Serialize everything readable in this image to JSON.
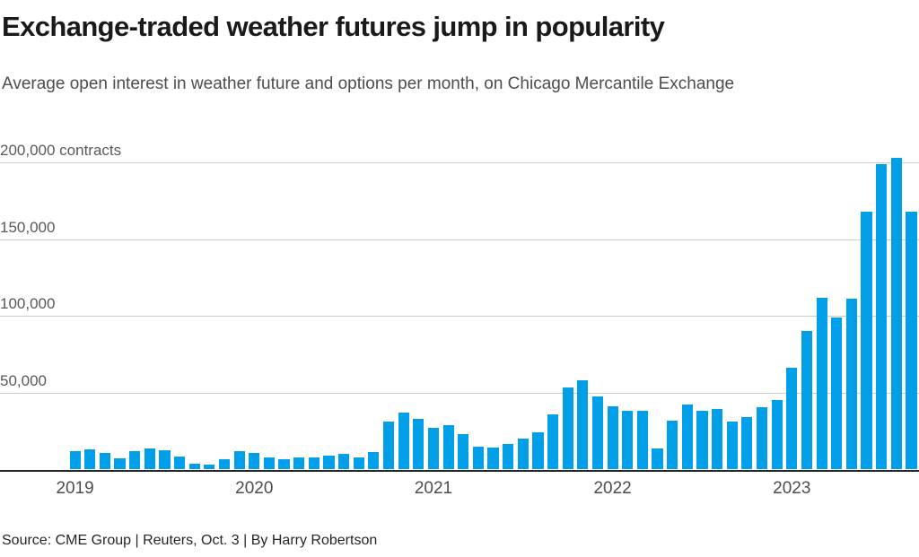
{
  "header": {
    "title": "Exchange-traded weather futures jump in popularity",
    "subtitle": "Average open interest in weather future and options per month, on Chicago Mercantile Exchange"
  },
  "footer": {
    "source_line": "Source: CME Group | Reuters, Oct. 3 | By Harry Robertson"
  },
  "colors": {
    "bar": "#009fe8",
    "gridline": "#cccccc",
    "axis_line": "#262626",
    "title_text": "#1a1a1a",
    "subtitle_text": "#4d4d4d",
    "tick_text": "#595959"
  },
  "chart_data": {
    "type": "bar",
    "title": "Exchange-traded weather futures jump in popularity",
    "subtitle": "Average open interest in weather future and options per month, on Chicago Mercantile Exchange",
    "xlabel": "",
    "ylabel": "contracts",
    "ylim": [
      0,
      210000
    ],
    "grid": true,
    "legend": "none",
    "y_ticks": [
      {
        "value": 200000,
        "label": "200,000 contracts"
      },
      {
        "value": 150000,
        "label": "150,000"
      },
      {
        "value": 100000,
        "label": "100,000"
      },
      {
        "value": 50000,
        "label": "50,000"
      }
    ],
    "year_labels": [
      "2019",
      "2020",
      "2021",
      "2022",
      "2023"
    ],
    "categories": [
      "2019-01",
      "2019-02",
      "2019-03",
      "2019-04",
      "2019-05",
      "2019-06",
      "2019-07",
      "2019-08",
      "2019-09",
      "2019-10",
      "2019-11",
      "2019-12",
      "2020-01",
      "2020-02",
      "2020-03",
      "2020-04",
      "2020-05",
      "2020-06",
      "2020-07",
      "2020-08",
      "2020-09",
      "2020-10",
      "2020-11",
      "2020-12",
      "2021-01",
      "2021-02",
      "2021-03",
      "2021-04",
      "2021-05",
      "2021-06",
      "2021-07",
      "2021-08",
      "2021-09",
      "2021-10",
      "2021-11",
      "2021-12",
      "2022-01",
      "2022-02",
      "2022-03",
      "2022-04",
      "2022-05",
      "2022-06",
      "2022-07",
      "2022-08",
      "2022-09",
      "2022-10",
      "2022-11",
      "2022-12",
      "2023-01",
      "2023-02",
      "2023-03",
      "2023-04",
      "2023-05",
      "2023-06",
      "2023-07",
      "2023-08",
      "2023-09"
    ],
    "values": [
      12000,
      13000,
      11000,
      7500,
      12000,
      14000,
      12500,
      8500,
      4000,
      3500,
      7000,
      12000,
      11000,
      8000,
      6500,
      8000,
      8000,
      9000,
      10500,
      8000,
      11500,
      31500,
      37000,
      33000,
      27000,
      29000,
      23000,
      15000,
      14500,
      16500,
      20000,
      24000,
      36000,
      53500,
      58000,
      47500,
      41000,
      38000,
      38000,
      13500,
      32000,
      42500,
      38500,
      39500,
      31000,
      34000,
      40500,
      45500,
      66500,
      90000,
      112000,
      99000,
      111000,
      168000,
      199000,
      203000,
      168000
    ]
  }
}
